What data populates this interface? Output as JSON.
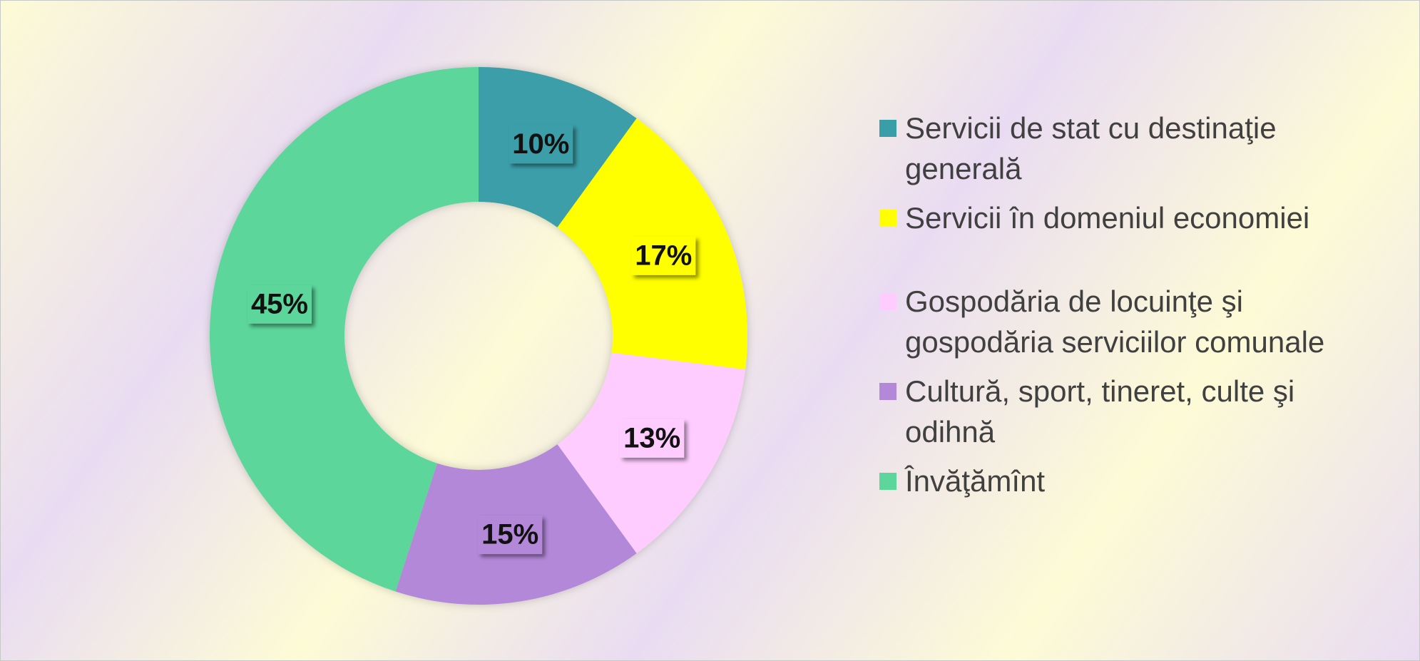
{
  "chart_data": {
    "type": "donut",
    "categories": [
      "Servicii de stat cu destinaţie generală",
      "Servicii în domeniul economiei",
      "Gospodăria de locuinţe şi gospodăria serviciilor comunale",
      "Cultură, sport, tineret, culte şi odihnă",
      "Învăţămînt"
    ],
    "values": [
      10,
      17,
      13,
      15,
      45
    ],
    "value_labels": [
      "10%",
      "17%",
      "13%",
      "15%",
      "45%"
    ],
    "colors": [
      "#3a9ea8",
      "#ffff00",
      "#ffccff",
      "#b388d8",
      "#5cd69b"
    ],
    "legend": "right"
  }
}
